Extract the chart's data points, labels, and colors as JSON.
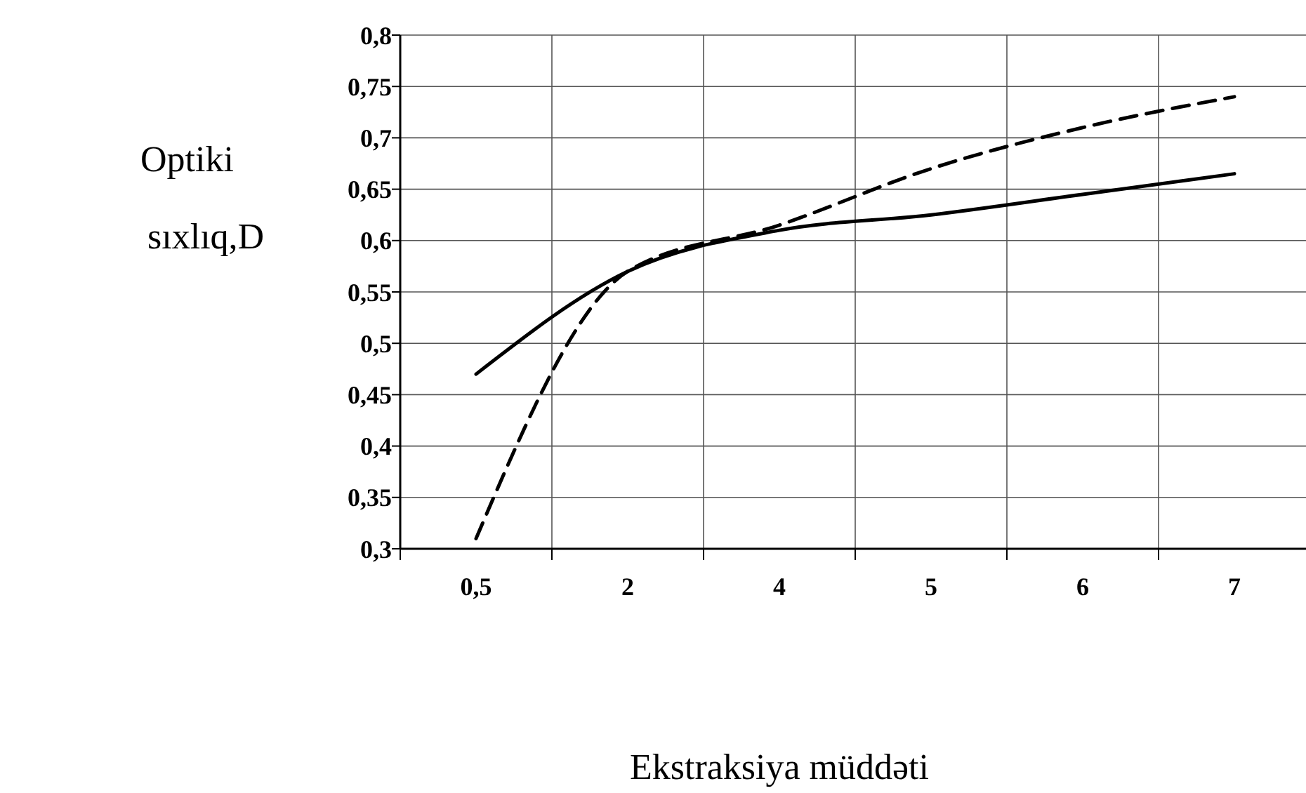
{
  "chart_data": {
    "type": "line",
    "ylabel": "Optiki\nsıxlıq,D",
    "xlabel": "Ekstraksiya müddəti",
    "categories": [
      "0,5",
      "2",
      "4",
      "5",
      "6",
      "7"
    ],
    "series": [
      {
        "color": "#000000",
        "line_style": "solid",
        "values": [
          0.47,
          0.57,
          0.61,
          0.625,
          0.645,
          0.665
        ]
      },
      {
        "color": "#000000",
        "line_style": "dashed",
        "values": [
          0.31,
          0.57,
          0.615,
          0.67,
          0.71,
          0.74
        ]
      }
    ],
    "ylim": [
      0.3,
      0.8
    ],
    "yticks": [
      {
        "value": 0.3,
        "label": "0,3"
      },
      {
        "value": 0.35,
        "label": "0,35"
      },
      {
        "value": 0.4,
        "label": "0,4"
      },
      {
        "value": 0.45,
        "label": "0,45"
      },
      {
        "value": 0.5,
        "label": "0,5"
      },
      {
        "value": 0.55,
        "label": "0,55"
      },
      {
        "value": 0.6,
        "label": "0,6"
      },
      {
        "value": 0.65,
        "label": "0,65"
      },
      {
        "value": 0.7,
        "label": "0,7"
      },
      {
        "value": 0.75,
        "label": "0,75"
      },
      {
        "value": 0.8,
        "label": "0,8"
      }
    ],
    "grid": true,
    "marker": "none"
  }
}
